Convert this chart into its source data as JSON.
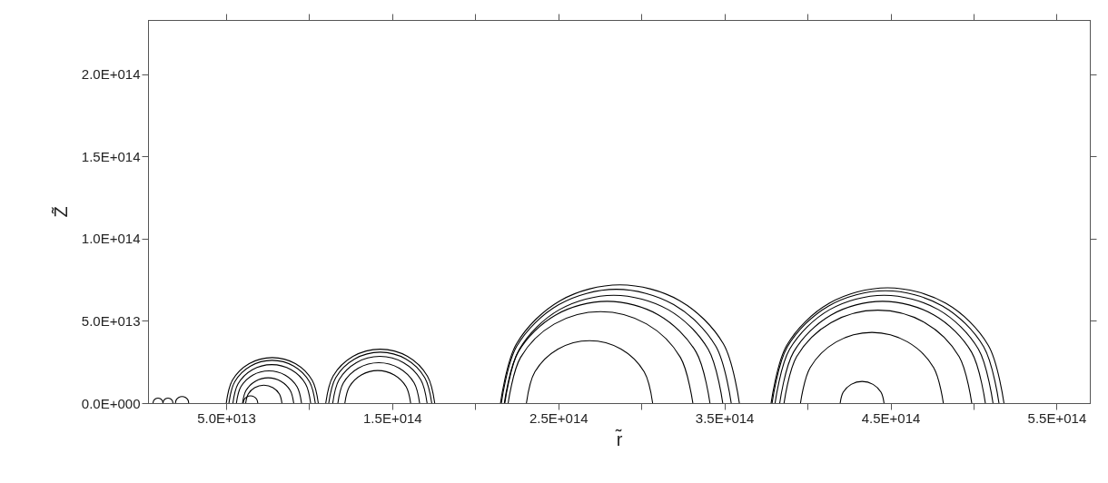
{
  "chart_data": {
    "type": "line",
    "xlabel": "r̃",
    "ylabel": "Z̃",
    "xlim": [
      3000000000000.0,
      570000000000000.0
    ],
    "ylim": [
      0,
      233000000000000.0
    ],
    "xticks": [
      {
        "value": 50000000000000.0,
        "label": "5.0E+013"
      },
      {
        "value": 100000000000000.0,
        "label": null
      },
      {
        "value": 150000000000000.0,
        "label": "1.5E+014"
      },
      {
        "value": 200000000000000.0,
        "label": null
      },
      {
        "value": 250000000000000.0,
        "label": "2.5E+014"
      },
      {
        "value": 300000000000000.0,
        "label": null
      },
      {
        "value": 350000000000000.0,
        "label": "3.5E+014"
      },
      {
        "value": 400000000000000.0,
        "label": null
      },
      {
        "value": 450000000000000.0,
        "label": "4.5E+014"
      },
      {
        "value": 500000000000000.0,
        "label": null
      },
      {
        "value": 550000000000000.0,
        "label": "5.5E+014"
      }
    ],
    "yticks": [
      {
        "value": 0,
        "label": "0.0E+000"
      },
      {
        "value": 50000000000000.0,
        "label": "5.0E+013"
      },
      {
        "value": 100000000000000.0,
        "label": "1.0E+014"
      },
      {
        "value": 150000000000000.0,
        "label": "1.5E+014"
      },
      {
        "value": 200000000000000.0,
        "label": "2.0E+014"
      }
    ],
    "series": [
      {
        "color": "#000000",
        "x": [
          6000000000000.0,
          6400000000000.0,
          7500000000000.0,
          9000000000000.0,
          10500000000000.0,
          11600000000000.0,
          12000000000000.0
        ],
        "values": [
          0,
          1500000000000.0,
          2600000000000.0,
          3000000000000.0,
          2600000000000.0,
          1500000000000.0,
          0
        ]
      },
      {
        "color": "#000000",
        "x": [
          12000000000000.0,
          12400000000000.0,
          13500000000000.0,
          15000000000000.0,
          16500000000000.0,
          17600000000000.0,
          18000000000000.0
        ],
        "values": [
          0,
          1500000000000.0,
          2600000000000.0,
          3000000000000.0,
          2600000000000.0,
          1500000000000.0,
          0
        ]
      },
      {
        "color": "#000000",
        "x": [
          19500000000000.0,
          20000000000000.0,
          21500000000000.0,
          23500000000000.0,
          25500000000000.0,
          27000000000000.0,
          27500000000000.0
        ],
        "values": [
          0,
          2000000000000.0,
          3500000000000.0,
          4000000000000.0,
          3500000000000.0,
          2000000000000.0,
          0
        ]
      },
      {
        "color": "#000000",
        "x": [
          50100000000000.0,
          53800000000000.0,
          63900000000000.0,
          77800000000000.0,
          91700000000000.0,
          101800000000000.0,
          105500000000000.0
        ],
        "values": [
          0,
          13900000000000.0,
          24000000000000.0,
          27700000000000.0,
          24000000000000.0,
          13900000000000.0,
          0
        ]
      },
      {
        "color": "#000000",
        "x": [
          51700000000000.0,
          55200000000000.0,
          64700000000000.0,
          77700000000000.0,
          90700000000000.0,
          100200000000000.0,
          103700000000000.0
        ],
        "values": [
          0,
          13000000000000.0,
          22500000000000.0,
          26000000000000.0,
          22500000000000.0,
          13000000000000.0,
          0
        ]
      },
      {
        "color": "#000000",
        "x": [
          54100000000000.0,
          57200000000000.0,
          65800000000000.0,
          77500000000000.0,
          89200000000000.0,
          97800000000000.0,
          100900000000000.0
        ],
        "values": [
          0,
          11700000000000.0,
          20300000000000.0,
          23400000000000.0,
          20300000000000.0,
          11700000000000.0,
          0
        ]
      },
      {
        "color": "#000000",
        "x": [
          56200000000000.0,
          58800000000000.0,
          66000000000000.0,
          75800000000000.0,
          85600000000000.0,
          92800000000000.0,
          95400000000000.0
        ],
        "values": [
          0,
          9800000000000.0,
          17000000000000.0,
          19600000000000.0,
          17000000000000.0,
          9800000000000.0,
          0
        ]
      },
      {
        "color": "#000000",
        "x": [
          59900000000000.0,
          62000000000000.0,
          67600000000000.0,
          75300000000000.0,
          83000000000000.0,
          88600000000000.0,
          90700000000000.0
        ],
        "values": [
          0,
          7700000000000.0,
          13300000000000.0,
          15400000000000.0,
          13300000000000.0,
          7700000000000.0,
          0
        ]
      },
      {
        "color": "#000000",
        "x": [
          61800000000000.0,
          63300000000000.0,
          67200000000000.0,
          72700000000000.0,
          78200000000000.0,
          82100000000000.0,
          83600000000000.0
        ],
        "values": [
          0,
          5500000000000.0,
          9400000000000.0,
          10900000000000.0,
          9400000000000.0,
          5500000000000.0,
          0
        ]
      },
      {
        "color": "#000000",
        "x": [
          60300000000000.0,
          60900000000000.0,
          62500000000000.0,
          64700000000000.0,
          66900000000000.0,
          68500000000000.0,
          69100000000000.0
        ],
        "values": [
          0,
          2200000000000.0,
          3800000000000.0,
          4400000000000.0,
          3800000000000.0,
          2200000000000.0,
          0
        ]
      },
      {
        "color": "#000000",
        "x": [
          110000000000000.0,
          114400000000000.0,
          126400000000000.0,
          142800000000000.0,
          159200000000000.0,
          171200000000000.0,
          175600000000000.0
        ],
        "values": [
          0,
          16400000000000.0,
          28400000000000.0,
          32800000000000.0,
          28400000000000.0,
          16400000000000.0,
          0
        ]
      },
      {
        "color": "#000000",
        "x": [
          111800000000000.0,
          116000000000000.0,
          127300000000000.0,
          142800000000000.0,
          158300000000000.0,
          169600000000000.0,
          173800000000000.0
        ],
        "values": [
          0,
          15500000000000.0,
          26800000000000.0,
          31000000000000.0,
          26800000000000.0,
          15500000000000.0,
          0
        ]
      },
      {
        "color": "#000000",
        "x": [
          114200000000000.0,
          118000000000000.0,
          128400000000000.0,
          142600000000000.0,
          156800000000000.0,
          167200000000000.0,
          171000000000000.0
        ],
        "values": [
          0,
          14200000000000.0,
          24600000000000.0,
          28400000000000.0,
          24600000000000.0,
          14200000000000.0,
          0
        ]
      },
      {
        "color": "#000000",
        "x": [
          117300000000000.0,
          120600000000000.0,
          129600000000000.0,
          141900000000000.0,
          154200000000000.0,
          163200000000000.0,
          166500000000000.0
        ],
        "values": [
          0,
          12300000000000.0,
          21300000000000.0,
          24600000000000.0,
          21300000000000.0,
          12300000000000.0,
          0
        ]
      },
      {
        "color": "#000000",
        "x": [
          121500000000000.0,
          124200000000000.0,
          131400000000000.0,
          141300000000000.0,
          151200000000000.0,
          158400000000000.0,
          161100000000000.0
        ],
        "values": [
          0,
          9900000000000.0,
          17100000000000.0,
          19800000000000.0,
          17100000000000.0,
          9900000000000.0,
          0
        ]
      },
      {
        "color": "#000000",
        "x": [
          230800000000000.0,
          235900000000000.0,
          249800000000000.0,
          268800000000000.0,
          287800000000000.0,
          301700000000000.0,
          306800000000000.0
        ],
        "values": [
          0,
          19000000000000.0,
          32900000000000.0,
          38000000000000.0,
          32900000000000.0,
          19000000000000.0,
          0
        ]
      },
      {
        "color": "#000000",
        "x": [
          219800000000000.0,
          227300000000000.0,
          247600000000000.0,
          275400000000000.0,
          303200000000000.0,
          323500000000000.0,
          331000000000000.0
        ],
        "values": [
          0,
          27800000000000.0,
          48100000000000.0,
          55600000000000.0,
          48100000000000.0,
          27800000000000.0,
          0
        ]
      },
      {
        "color": "#000000",
        "x": [
          217500000000000.0,
          225800000000000.0,
          248400000000000.0,
          279400000000000.0,
          310400000000000.0,
          333000000000000.0,
          341300000000000.0
        ],
        "values": [
          0,
          31000000000000.0,
          53600000000000.0,
          61900000000000.0,
          53600000000000.0,
          31000000000000.0,
          0
        ]
      },
      {
        "color": "#000000",
        "x": [
          217800000000000.0,
          226600000000000.0,
          250600000000000.0,
          283400000000000.0,
          316200000000000.0,
          340200000000000.0,
          349000000000000.0
        ],
        "values": [
          0,
          32800000000000.0,
          56800000000000.0,
          65600000000000.0,
          56800000000000.0,
          32800000000000.0,
          0
        ]
      },
      {
        "color": "#000000",
        "x": [
          215700000000000.0,
          225000000000000.0,
          250300000000000.0,
          284900000000000.0,
          319500000000000.0,
          344800000000000.0,
          354100000000000.0
        ],
        "values": [
          0,
          34600000000000.0,
          59900000000000.0,
          69200000000000.0,
          59900000000000.0,
          34600000000000.0,
          0
        ]
      },
      {
        "color": "#000000",
        "x": [
          215200000000000.0,
          224800000000000.0,
          251100000000000.0,
          287100000000000.0,
          323100000000000.0,
          349400000000000.0,
          359000000000000.0
        ],
        "values": [
          0,
          36000000000000.0,
          62300000000000.0,
          71900000000000.0,
          62300000000000.0,
          36000000000000.0,
          0
        ]
      },
      {
        "color": "#000000",
        "x": [
          419700000000000.0,
          421500000000000.0,
          426300000000000.0,
          432900000000000.0,
          439500000000000.0,
          444300000000000.0,
          446100000000000.0
        ],
        "values": [
          0,
          6600000000000.0,
          11400000000000.0,
          13200000000000.0,
          11400000000000.0,
          6600000000000.0,
          0
        ]
      },
      {
        "color": "#000000",
        "x": [
          395800000000000.0,
          401600000000000.0,
          417300000000000.0,
          438800000000000.0,
          460300000000000.0,
          476000000000000.0,
          481800000000000.0
        ],
        "values": [
          0,
          21500000000000.0,
          37200000000000.0,
          43000000000000.0,
          37200000000000.0,
          21500000000000.0,
          0
        ]
      },
      {
        "color": "#000000",
        "x": [
          385900000000000.0,
          393500000000000.0,
          414100000000000.0,
          442400000000000.0,
          470700000000000.0,
          491300000000000.0,
          498900000000000.0
        ],
        "values": [
          0,
          28300000000000.0,
          48900000000000.0,
          56500000000000.0,
          48900000000000.0,
          28300000000000.0,
          0
        ]
      },
      {
        "color": "#000000",
        "x": [
          383300000000000.0,
          391600000000000.0,
          414200000000000.0,
          445200000000000.0,
          476200000000000.0,
          498800000000000.0,
          507100000000000.0
        ],
        "values": [
          0,
          31000000000000.0,
          53600000000000.0,
          61900000000000.0,
          53600000000000.0,
          31000000000000.0,
          0
        ]
      },
      {
        "color": "#000000",
        "x": [
          380500000000000.0,
          389300000000000.0,
          413300000000000.0,
          446100000000000.0,
          478900000000000.0,
          502900000000000.0,
          511700000000000.0
        ],
        "values": [
          0,
          32800000000000.0,
          56800000000000.0,
          65600000000000.0,
          56800000000000.0,
          32800000000000.0,
          0
        ]
      },
      {
        "color": "#000000",
        "x": [
          378700000000000.0,
          387900000000000.0,
          412800000000000.0,
          447000000000000.0,
          481200000000000.0,
          506100000000000.0,
          515300000000000.0
        ],
        "values": [
          0,
          34200000000000.0,
          59100000000000.0,
          68300000000000.0,
          59100000000000.0,
          34200000000000.0,
          0
        ]
      },
      {
        "color": "#000000",
        "x": [
          378100000000000.0,
          387500000000000.0,
          413100000000000.0,
          448200000000000.0,
          483300000000000.0,
          508900000000000.0,
          518300000000000.0
        ],
        "values": [
          0,
          35100000000000.0,
          60700000000000.0,
          70100000000000.0,
          60700000000000.0,
          35100000000000.0,
          0
        ]
      }
    ]
  }
}
